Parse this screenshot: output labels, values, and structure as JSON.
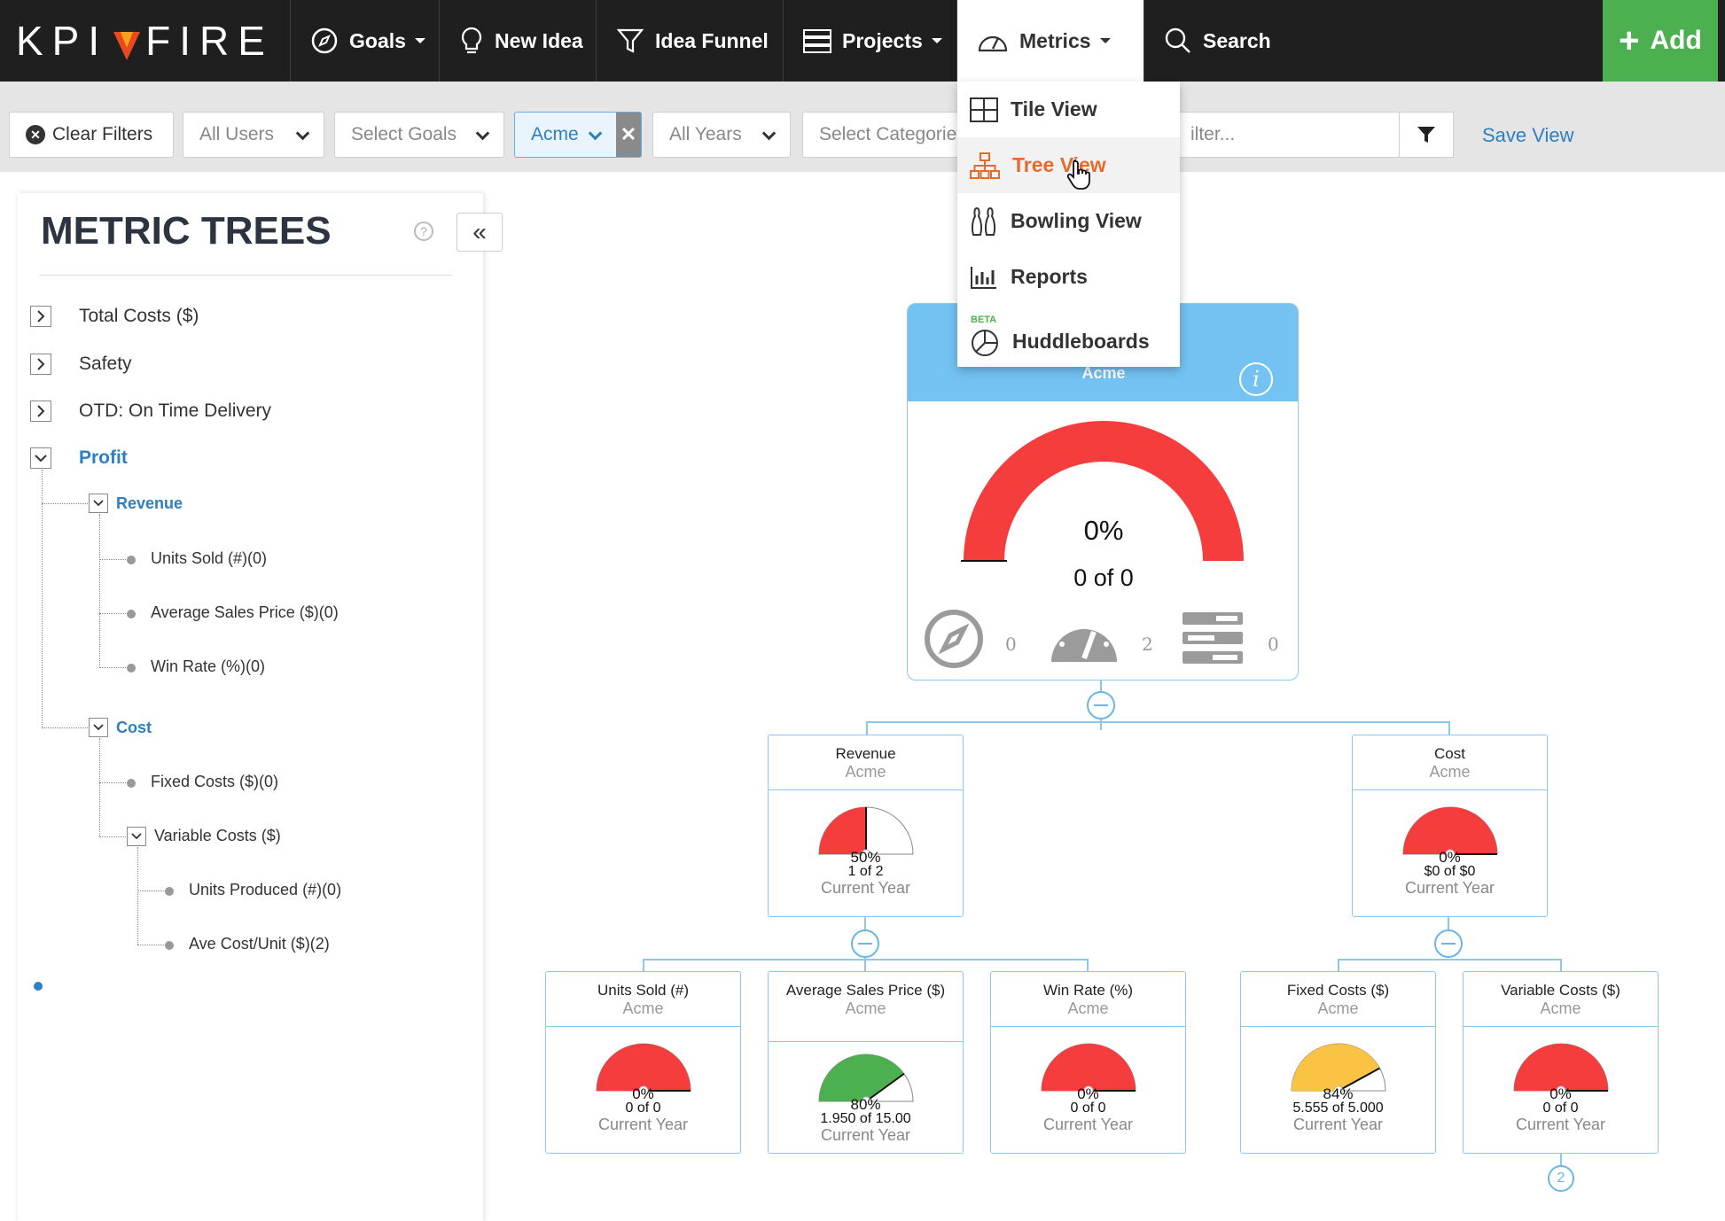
{
  "brand": {
    "logo_left": "KPI",
    "logo_right": "FIRE"
  },
  "nav": {
    "goals": "Goals",
    "new_idea": "New Idea",
    "idea_funnel": "Idea Funnel",
    "projects": "Projects",
    "metrics": "Metrics",
    "search": "Search",
    "add": "Add"
  },
  "filters": {
    "clear": "Clear Filters",
    "users": "All Users",
    "goals": "Select Goals",
    "company": "Acme",
    "years": "All Years",
    "categories": "Select Categorie",
    "text_filter": "ilter...",
    "save_view": "Save View"
  },
  "metrics_menu": {
    "items": [
      "Tile View",
      "Tree View",
      "Bowling View",
      "Reports",
      "Huddleboards"
    ],
    "beta": "BETA",
    "active": "Tree View"
  },
  "sidebar": {
    "title": "METRIC TREES",
    "help": "?",
    "roots": [
      "Total Costs ($)",
      "Safety",
      "OTD: On Time Delivery",
      "Profit"
    ],
    "revenue": "Revenue",
    "revenue_children": [
      "Units Sold (#)(0)",
      "Average Sales Price ($)(0)",
      "Win Rate (%)(0)"
    ],
    "cost": "Cost",
    "cost_children": [
      "Fixed Costs ($)(0)"
    ],
    "variable": "Variable Costs ($)",
    "variable_children": [
      "Units Produced (#)(0)",
      "Ave Cost/Unit ($)(2)"
    ]
  },
  "root_card": {
    "subtitle": "Acme",
    "percent": "0%",
    "of": "0 of 0",
    "goals_count": "0",
    "metrics_count": "2",
    "projects_count": "0",
    "gauge_fraction": 0,
    "gauge_color": "#f53d3d"
  },
  "cards": [
    {
      "id": "revenue",
      "title": "Revenue",
      "sub": "Acme",
      "pct": "50%",
      "of": "1 of 2",
      "period": "Current Year",
      "fraction": 0.5,
      "color": "#f53d3d"
    },
    {
      "id": "cost",
      "title": "Cost",
      "sub": "Acme",
      "pct": "0%",
      "of": "$0 of $0",
      "period": "Current Year",
      "fraction": 1,
      "color": "#f53d3d"
    },
    {
      "id": "units-sold",
      "title": "Units Sold (#)",
      "sub": "Acme",
      "pct": "0%",
      "of": "0 of 0",
      "period": "Current Year",
      "fraction": 1,
      "color": "#f53d3d"
    },
    {
      "id": "avg-sales-price",
      "title": "Average Sales Price ($)",
      "sub": "Acme",
      "pct": "80%",
      "of": "1.950 of 15.00",
      "period": "Current Year",
      "fraction": 0.8,
      "color": "#4cb050"
    },
    {
      "id": "win-rate",
      "title": "Win Rate (%)",
      "sub": "Acme",
      "pct": "0%",
      "of": "0 of 0",
      "period": "Current Year",
      "fraction": 1,
      "color": "#f53d3d"
    },
    {
      "id": "fixed-costs",
      "title": "Fixed Costs ($)",
      "sub": "Acme",
      "pct": "84%",
      "of": "5.555 of 5.000",
      "period": "Current Year",
      "fraction": 0.84,
      "color": "#fbc343"
    },
    {
      "id": "variable-costs",
      "title": "Variable Costs ($)",
      "sub": "Acme",
      "pct": "0%",
      "of": "0 of 0",
      "period": "Current Year",
      "fraction": 1,
      "color": "#f53d3d"
    }
  ],
  "variable_children_count": "2"
}
